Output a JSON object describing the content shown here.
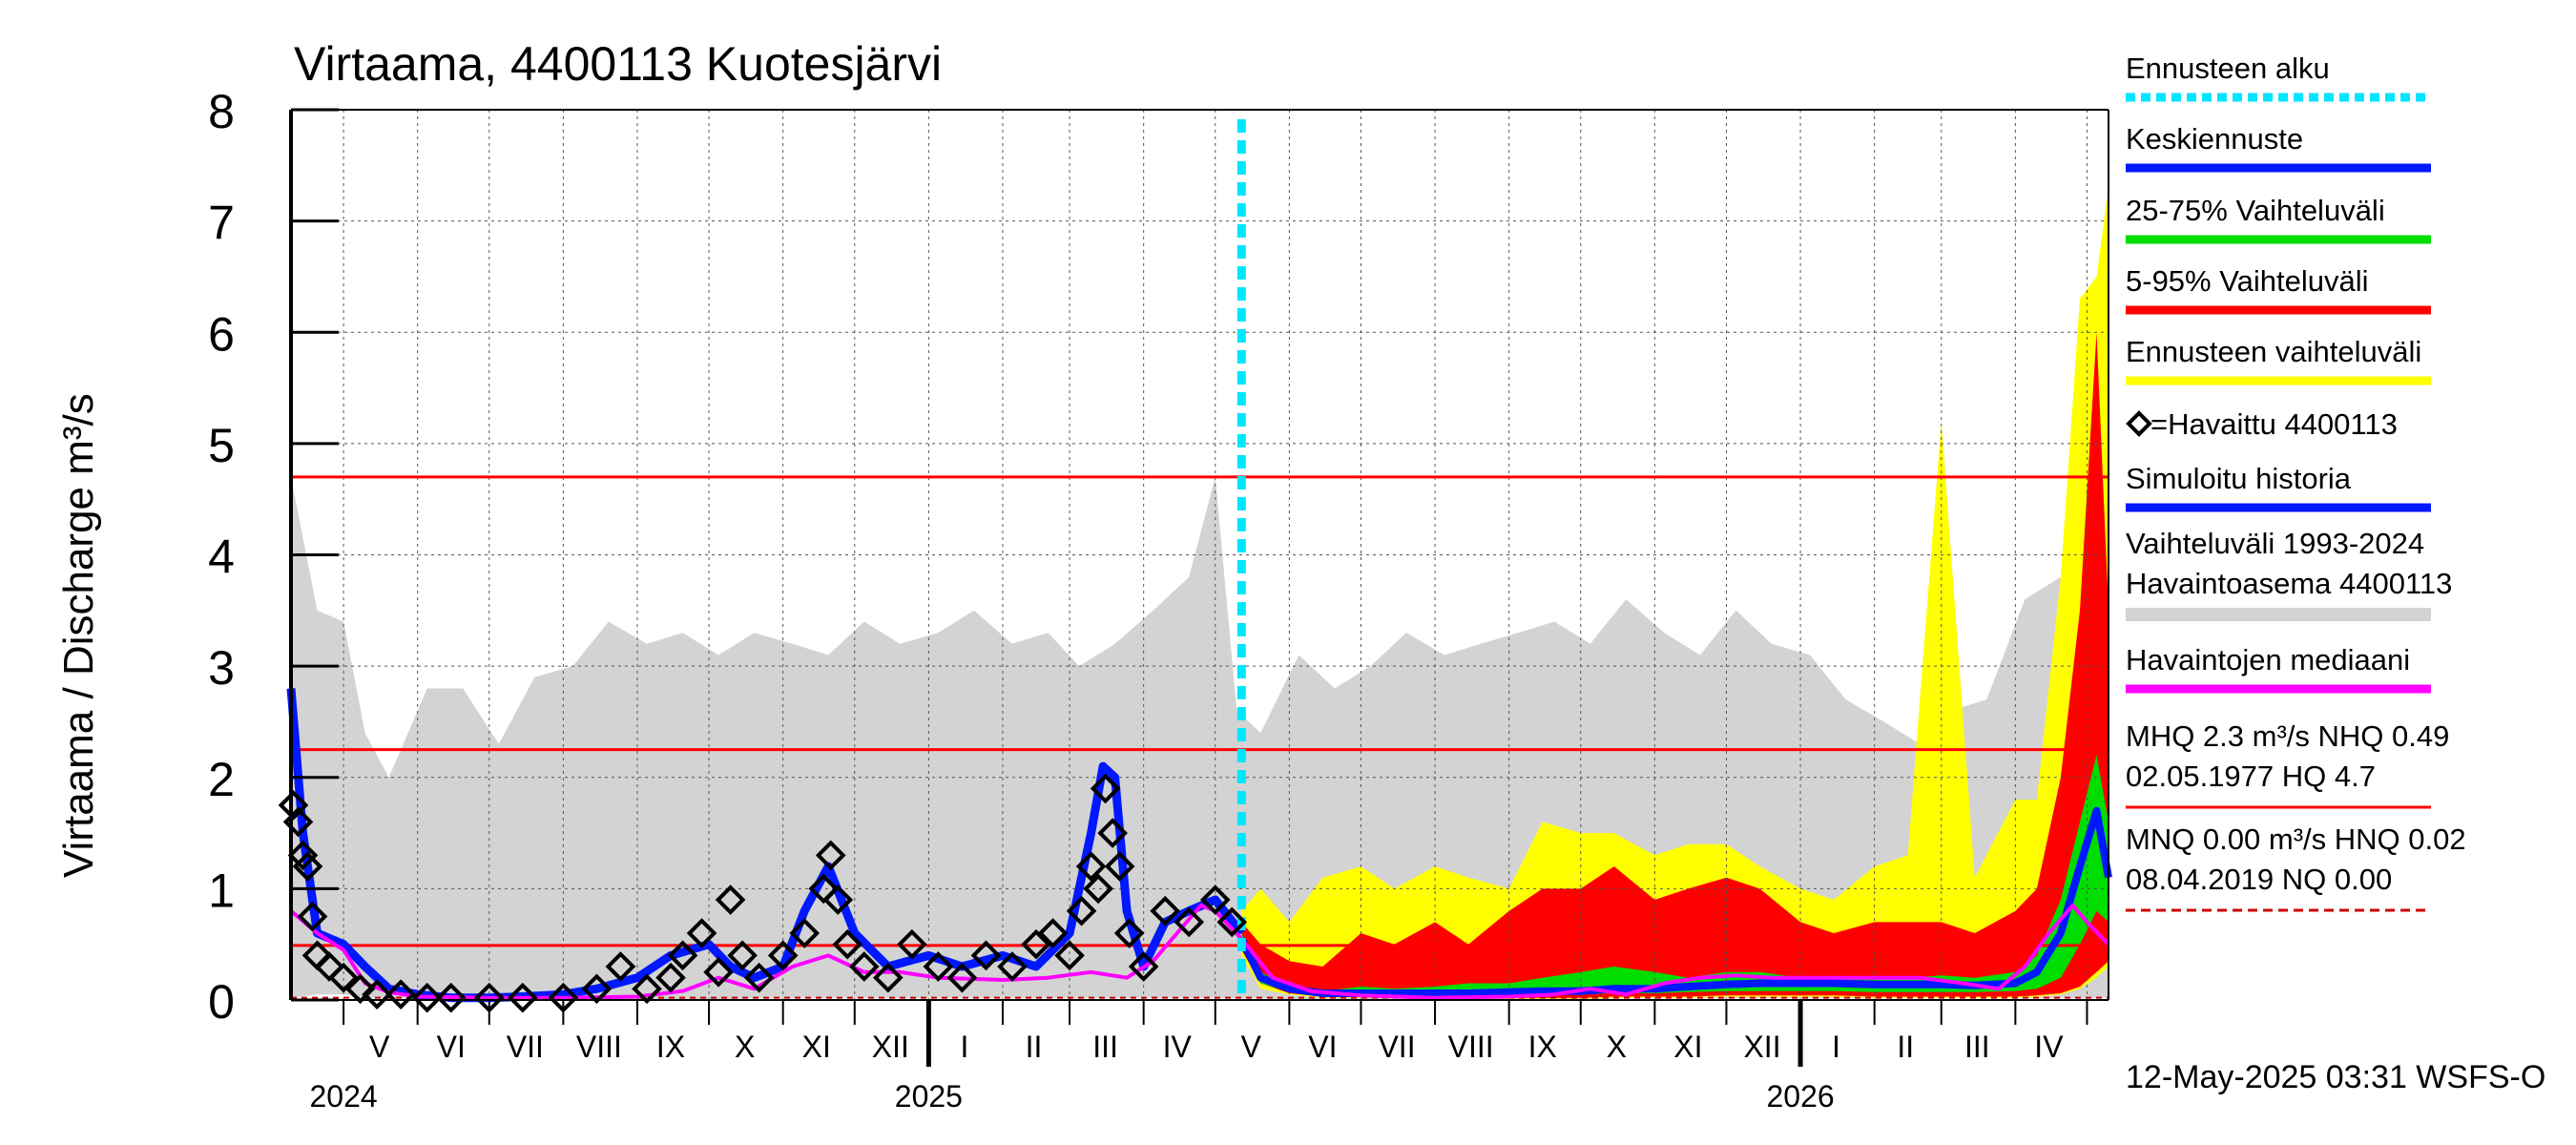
{
  "chart_data": {
    "type": "line",
    "title": "Virtaama, 4400113 Kuotesjärvi",
    "ylabel": "Virtaama / Discharge    m³/s",
    "ylim": [
      0,
      8
    ],
    "yticks": [
      "0",
      "1",
      "2",
      "3",
      "4",
      "5",
      "6",
      "7",
      "8"
    ],
    "xlim": [
      "2024-04-09",
      "2026-05-10"
    ],
    "month_labels": [
      {
        "label": "V",
        "date": "2024-05-16"
      },
      {
        "label": "VI",
        "date": "2024-06-15"
      },
      {
        "label": "VII",
        "date": "2024-07-16"
      },
      {
        "label": "VIII",
        "date": "2024-08-16"
      },
      {
        "label": "IX",
        "date": "2024-09-15"
      },
      {
        "label": "X",
        "date": "2024-10-16"
      },
      {
        "label": "XI",
        "date": "2024-11-15"
      },
      {
        "label": "XII",
        "date": "2024-12-16"
      },
      {
        "label": "I",
        "date": "2025-01-16"
      },
      {
        "label": "II",
        "date": "2025-02-14"
      },
      {
        "label": "III",
        "date": "2025-03-16"
      },
      {
        "label": "IV",
        "date": "2025-04-15"
      },
      {
        "label": "V",
        "date": "2025-05-16"
      },
      {
        "label": "VI",
        "date": "2025-06-15"
      },
      {
        "label": "VII",
        "date": "2025-07-16"
      },
      {
        "label": "VIII",
        "date": "2025-08-16"
      },
      {
        "label": "IX",
        "date": "2025-09-15"
      },
      {
        "label": "X",
        "date": "2025-10-16"
      },
      {
        "label": "XI",
        "date": "2025-11-15"
      },
      {
        "label": "XII",
        "date": "2025-12-16"
      },
      {
        "label": "I",
        "date": "2026-01-16"
      },
      {
        "label": "II",
        "date": "2026-02-14"
      },
      {
        "label": "III",
        "date": "2026-03-16"
      },
      {
        "label": "IV",
        "date": "2026-04-15"
      }
    ],
    "year_labels": [
      {
        "label": "2024",
        "date": "2024-05-01"
      },
      {
        "label": "2025",
        "date": "2025-01-01"
      },
      {
        "label": "2026",
        "date": "2026-01-01"
      }
    ],
    "forecast_start": "2025-05-12",
    "reference_lines": [
      {
        "name": "HQ",
        "value": 4.7
      },
      {
        "name": "MHQ",
        "value": 2.25
      },
      {
        "name": "NHQ",
        "value": 0.49
      },
      {
        "name": "HNQ",
        "value": 0.02
      }
    ],
    "series": [
      {
        "name": "Vaihteluväli 1993-2024 Havaintoasema 4400113",
        "kind": "band",
        "x": [
          "2024-04-09",
          "2024-04-20",
          "2024-05-01",
          "2024-05-10",
          "2024-05-20",
          "2024-06-05",
          "2024-06-20",
          "2024-07-05",
          "2024-07-20",
          "2024-08-05",
          "2024-08-20",
          "2024-09-05",
          "2024-09-20",
          "2024-10-05",
          "2024-10-20",
          "2024-11-05",
          "2024-11-20",
          "2024-12-05",
          "2024-12-20",
          "2025-01-05",
          "2025-01-20",
          "2025-02-05",
          "2025-02-20",
          "2025-03-05",
          "2025-03-20",
          "2025-04-05",
          "2025-04-20",
          "2025-05-01",
          "2025-05-10",
          "2025-05-20",
          "2025-06-05",
          "2025-06-20",
          "2025-07-05",
          "2025-07-20",
          "2025-08-05",
          "2025-08-20",
          "2025-09-05",
          "2025-09-20",
          "2025-10-05",
          "2025-10-20",
          "2025-11-05",
          "2025-11-20",
          "2025-12-05",
          "2025-12-20",
          "2026-01-05",
          "2026-01-20",
          "2026-02-05",
          "2026-02-20",
          "2026-03-05",
          "2026-03-20",
          "2026-04-05",
          "2026-04-20",
          "2026-04-26",
          "2026-05-01",
          "2026-05-10"
        ],
        "upper": [
          4.7,
          3.5,
          3.4,
          2.4,
          2.0,
          2.8,
          2.8,
          2.3,
          2.9,
          3.0,
          3.4,
          3.2,
          3.3,
          3.1,
          3.3,
          3.2,
          3.1,
          3.4,
          3.2,
          3.3,
          3.5,
          3.2,
          3.3,
          3.0,
          3.2,
          3.5,
          3.8,
          4.7,
          2.6,
          2.4,
          3.1,
          2.8,
          3.0,
          3.3,
          3.1,
          3.2,
          3.3,
          3.4,
          3.2,
          3.6,
          3.3,
          3.1,
          3.5,
          3.2,
          3.1,
          2.7,
          2.5,
          2.3,
          2.6,
          2.7,
          3.6,
          3.8,
          4.6,
          3.3,
          2.9
        ],
        "lower": [
          0.02,
          0.05,
          0.05,
          0.02,
          0.02,
          0.0,
          0.0,
          0.0,
          0.0,
          0.0,
          0.0,
          0.0,
          0.0,
          0.0,
          0.02,
          0.02,
          0.02,
          0.02,
          0.02,
          0.02,
          0.02,
          0.02,
          0.02,
          0.02,
          0.02,
          0.02,
          0.02,
          0.02,
          0.02,
          0.02,
          0.0,
          0.0,
          0.0,
          0.0,
          0.0,
          0.0,
          0.0,
          0.0,
          0.0,
          0.02,
          0.02,
          0.02,
          0.02,
          0.02,
          0.02,
          0.02,
          0.02,
          0.02,
          0.02,
          0.02,
          0.02,
          0.02,
          0.02,
          0.02,
          0.02
        ]
      },
      {
        "name": "Ennusteen vaihteluväli",
        "kind": "band",
        "x": [
          "2025-05-12",
          "2025-05-20",
          "2025-06-01",
          "2025-06-15",
          "2025-07-01",
          "2025-07-15",
          "2025-08-01",
          "2025-08-15",
          "2025-09-01",
          "2025-09-15",
          "2025-10-01",
          "2025-10-15",
          "2025-11-01",
          "2025-11-15",
          "2025-12-01",
          "2025-12-15",
          "2026-01-01",
          "2026-01-15",
          "2026-02-01",
          "2026-02-15",
          "2026-03-01",
          "2026-03-15",
          "2026-04-01",
          "2026-04-10",
          "2026-04-20",
          "2026-04-28",
          "2026-05-05",
          "2026-05-10"
        ],
        "upper": [
          0.8,
          1.0,
          0.7,
          1.1,
          1.2,
          1.0,
          1.2,
          1.1,
          1.0,
          1.6,
          1.5,
          1.5,
          1.3,
          1.4,
          1.4,
          1.2,
          1.0,
          0.9,
          1.2,
          1.3,
          5.2,
          1.1,
          1.8,
          1.8,
          3.8,
          6.3,
          6.5,
          7.3
        ],
        "lower": [
          0.4,
          0.1,
          0.05,
          0.02,
          0.02,
          0.02,
          0.01,
          0.01,
          0.01,
          0.01,
          0.01,
          0.02,
          0.02,
          0.02,
          0.03,
          0.03,
          0.03,
          0.03,
          0.02,
          0.02,
          0.02,
          0.02,
          0.02,
          0.03,
          0.05,
          0.1,
          0.2,
          0.3
        ]
      },
      {
        "name": "5-95% Vaihteluväli",
        "kind": "band",
        "x": [
          "2025-05-12",
          "2025-05-20",
          "2025-06-01",
          "2025-06-15",
          "2025-07-01",
          "2025-07-15",
          "2025-08-01",
          "2025-08-15",
          "2025-09-01",
          "2025-09-15",
          "2025-10-01",
          "2025-10-15",
          "2025-11-01",
          "2025-11-15",
          "2025-12-01",
          "2025-12-15",
          "2026-01-01",
          "2026-01-15",
          "2026-02-01",
          "2026-02-15",
          "2026-03-01",
          "2026-03-15",
          "2026-04-01",
          "2026-04-10",
          "2026-04-20",
          "2026-04-28",
          "2026-05-05",
          "2026-05-10"
        ],
        "upper": [
          0.7,
          0.5,
          0.35,
          0.3,
          0.6,
          0.5,
          0.7,
          0.5,
          0.8,
          1.0,
          1.0,
          1.2,
          0.9,
          1.0,
          1.1,
          1.0,
          0.7,
          0.6,
          0.7,
          0.7,
          0.7,
          0.6,
          0.8,
          1.0,
          2.0,
          3.5,
          6.0,
          3.5
        ],
        "lower": [
          0.45,
          0.15,
          0.06,
          0.03,
          0.03,
          0.02,
          0.02,
          0.02,
          0.02,
          0.02,
          0.02,
          0.03,
          0.03,
          0.03,
          0.04,
          0.04,
          0.04,
          0.04,
          0.03,
          0.03,
          0.03,
          0.03,
          0.03,
          0.04,
          0.06,
          0.12,
          0.25,
          0.35
        ]
      },
      {
        "name": "25-75% Vaihteluväli",
        "kind": "band",
        "x": [
          "2025-05-12",
          "2025-05-20",
          "2025-06-01",
          "2025-06-15",
          "2025-07-01",
          "2025-07-15",
          "2025-08-01",
          "2025-08-15",
          "2025-09-01",
          "2025-09-15",
          "2025-10-01",
          "2025-10-15",
          "2025-11-01",
          "2025-11-15",
          "2025-12-01",
          "2025-12-15",
          "2026-01-01",
          "2026-01-15",
          "2026-02-01",
          "2026-02-15",
          "2026-03-01",
          "2026-03-15",
          "2026-04-01",
          "2026-04-10",
          "2026-04-20",
          "2026-04-28",
          "2026-05-05",
          "2026-05-10"
        ],
        "upper": [
          0.6,
          0.25,
          0.12,
          0.08,
          0.12,
          0.1,
          0.12,
          0.15,
          0.15,
          0.2,
          0.25,
          0.3,
          0.25,
          0.2,
          0.25,
          0.25,
          0.2,
          0.2,
          0.2,
          0.2,
          0.22,
          0.2,
          0.25,
          0.4,
          0.9,
          1.6,
          2.2,
          1.6
        ],
        "lower": [
          0.5,
          0.15,
          0.07,
          0.04,
          0.04,
          0.04,
          0.04,
          0.04,
          0.04,
          0.04,
          0.05,
          0.06,
          0.06,
          0.07,
          0.08,
          0.08,
          0.08,
          0.08,
          0.07,
          0.07,
          0.07,
          0.07,
          0.08,
          0.1,
          0.2,
          0.5,
          0.8,
          0.7
        ]
      },
      {
        "name": "Keskiennuste",
        "kind": "line",
        "x": [
          "2025-05-12",
          "2025-05-20",
          "2025-06-01",
          "2025-06-15",
          "2025-07-01",
          "2025-07-15",
          "2025-08-01",
          "2025-08-15",
          "2025-09-01",
          "2025-09-15",
          "2025-10-01",
          "2025-10-15",
          "2025-11-01",
          "2025-11-15",
          "2025-12-01",
          "2025-12-15",
          "2026-01-01",
          "2026-01-15",
          "2026-02-01",
          "2026-02-15",
          "2026-03-01",
          "2026-03-15",
          "2026-04-01",
          "2026-04-10",
          "2026-04-20",
          "2026-04-28",
          "2026-05-05",
          "2026-05-10"
        ],
        "y": [
          0.55,
          0.2,
          0.1,
          0.06,
          0.06,
          0.06,
          0.06,
          0.06,
          0.07,
          0.08,
          0.08,
          0.1,
          0.1,
          0.12,
          0.14,
          0.15,
          0.15,
          0.15,
          0.14,
          0.14,
          0.14,
          0.13,
          0.15,
          0.25,
          0.6,
          1.2,
          1.7,
          1.1
        ]
      },
      {
        "name": "Simuloitu historia",
        "kind": "line",
        "x": [
          "2024-04-09",
          "2024-04-14",
          "2024-04-20",
          "2024-05-01",
          "2024-05-10",
          "2024-05-20",
          "2024-06-01",
          "2024-06-15",
          "2024-07-01",
          "2024-07-15",
          "2024-08-01",
          "2024-08-15",
          "2024-09-01",
          "2024-09-15",
          "2024-10-01",
          "2024-10-10",
          "2024-10-20",
          "2024-11-01",
          "2024-11-10",
          "2024-11-20",
          "2024-12-01",
          "2024-12-15",
          "2025-01-01",
          "2025-01-15",
          "2025-02-01",
          "2025-02-15",
          "2025-03-01",
          "2025-03-10",
          "2025-03-15",
          "2025-03-20",
          "2025-03-25",
          "2025-04-01",
          "2025-04-10",
          "2025-04-20",
          "2025-05-01",
          "2025-05-12"
        ],
        "y": [
          2.8,
          1.5,
          0.6,
          0.5,
          0.3,
          0.1,
          0.05,
          0.02,
          0.02,
          0.03,
          0.05,
          0.1,
          0.2,
          0.4,
          0.5,
          0.3,
          0.2,
          0.3,
          0.8,
          1.2,
          0.6,
          0.3,
          0.4,
          0.3,
          0.4,
          0.3,
          0.6,
          1.5,
          2.1,
          2.0,
          0.8,
          0.3,
          0.7,
          0.8,
          0.9,
          0.6
        ]
      },
      {
        "name": "Havaittu 4400113",
        "kind": "scatter",
        "x": [
          "2024-04-10",
          "2024-04-12",
          "2024-04-14",
          "2024-04-16",
          "2024-04-18",
          "2024-04-20",
          "2024-04-25",
          "2024-05-01",
          "2024-05-08",
          "2024-05-15",
          "2024-05-25",
          "2024-06-05",
          "2024-06-15",
          "2024-07-01",
          "2024-07-15",
          "2024-08-01",
          "2024-08-15",
          "2024-08-25",
          "2024-09-05",
          "2024-09-15",
          "2024-09-20",
          "2024-09-28",
          "2024-10-05",
          "2024-10-10",
          "2024-10-15",
          "2024-10-22",
          "2024-11-01",
          "2024-11-10",
          "2024-11-18",
          "2024-11-21",
          "2024-11-24",
          "2024-11-28",
          "2024-12-05",
          "2024-12-15",
          "2024-12-25",
          "2025-01-05",
          "2025-01-15",
          "2025-01-25",
          "2025-02-05",
          "2025-02-15",
          "2025-02-22",
          "2025-03-01",
          "2025-03-06",
          "2025-03-10",
          "2025-03-13",
          "2025-03-16",
          "2025-03-19",
          "2025-03-22",
          "2025-03-26",
          "2025-04-01",
          "2025-04-10",
          "2025-04-20",
          "2025-05-01",
          "2025-05-08"
        ],
        "y": [
          1.75,
          1.6,
          1.3,
          1.2,
          0.75,
          0.4,
          0.3,
          0.2,
          0.1,
          0.05,
          0.05,
          0.02,
          0.02,
          0.02,
          0.02,
          0.02,
          0.1,
          0.3,
          0.1,
          0.2,
          0.4,
          0.6,
          0.25,
          0.9,
          0.4,
          0.2,
          0.4,
          0.6,
          1.0,
          1.3,
          0.9,
          0.5,
          0.3,
          0.2,
          0.5,
          0.3,
          0.2,
          0.4,
          0.3,
          0.5,
          0.6,
          0.4,
          0.8,
          1.2,
          1.0,
          1.9,
          1.5,
          1.2,
          0.6,
          0.3,
          0.8,
          0.7,
          0.9,
          0.7
        ]
      },
      {
        "name": "Havaintojen mediaani",
        "kind": "line",
        "x": [
          "2024-04-09",
          "2024-04-20",
          "2024-05-01",
          "2024-05-10",
          "2024-05-20",
          "2024-06-01",
          "2024-07-01",
          "2024-08-01",
          "2024-09-01",
          "2024-09-20",
          "2024-10-05",
          "2024-10-20",
          "2024-11-05",
          "2024-11-20",
          "2024-12-05",
          "2024-12-20",
          "2025-01-05",
          "2025-02-01",
          "2025-02-20",
          "2025-03-10",
          "2025-03-25",
          "2025-04-05",
          "2025-04-15",
          "2025-04-25",
          "2025-05-01",
          "2025-05-12",
          "2025-05-25",
          "2025-06-10",
          "2025-07-01",
          "2025-08-01",
          "2025-09-01",
          "2025-09-20",
          "2025-10-05",
          "2025-10-20",
          "2025-11-05",
          "2025-11-20",
          "2025-12-05",
          "2025-12-20",
          "2026-01-05",
          "2026-02-01",
          "2026-02-20",
          "2026-03-10",
          "2026-03-25",
          "2026-04-05",
          "2026-04-15",
          "2026-04-25",
          "2026-05-01",
          "2026-05-10"
        ],
        "y": [
          0.8,
          0.6,
          0.45,
          0.15,
          0.07,
          0.03,
          0.02,
          0.02,
          0.03,
          0.08,
          0.2,
          0.1,
          0.3,
          0.4,
          0.25,
          0.25,
          0.2,
          0.18,
          0.2,
          0.25,
          0.2,
          0.35,
          0.6,
          0.85,
          0.8,
          0.55,
          0.2,
          0.08,
          0.04,
          0.02,
          0.03,
          0.05,
          0.1,
          0.05,
          0.15,
          0.2,
          0.22,
          0.2,
          0.2,
          0.2,
          0.2,
          0.15,
          0.1,
          0.3,
          0.6,
          0.85,
          0.7,
          0.5
        ]
      }
    ],
    "legend_position": "right",
    "grid": true
  },
  "legend": {
    "items": [
      {
        "label": "Ennusteen alku",
        "color": "#00e6ff",
        "style": "dashed"
      },
      {
        "label": "Keskiennuste",
        "color": "#0018ff",
        "style": "solid"
      },
      {
        "label": "25-75% Vaihteluväli",
        "color": "#00dd00",
        "style": "solid"
      },
      {
        "label": "5-95% Vaihteluväli",
        "color": "#ff0000",
        "style": "solid"
      },
      {
        "label": "Ennusteen vaihteluväli",
        "color": "#ffff00",
        "style": "solid"
      },
      {
        "label": "=Havaittu 4400113",
        "color": "#000000",
        "style": "marker"
      },
      {
        "label": "Simuloitu historia",
        "color": "#0018ff",
        "style": "solid"
      },
      {
        "label": "Vaihteluväli 1993-2024",
        "label2": " Havaintoasema 4400113",
        "color": "#d3d3d3",
        "style": "solid"
      },
      {
        "label": "Havaintojen mediaani",
        "color": "#ff00ff",
        "style": "solid"
      },
      {
        "label": "MHQ  2.3 m³/s NHQ 0.49",
        "label2": "02.05.1977 HQ  4.7",
        "color": "#ff0000",
        "style": "solid"
      },
      {
        "label": "MNQ 0.00 m³/s HNQ 0.02",
        "label2": "08.04.2019 NQ 0.00",
        "color": "#cc0000",
        "style": "dashed"
      }
    ]
  },
  "footer": {
    "timestamp": "12-May-2025 03:31 WSFS-O"
  },
  "colors": {
    "history_band": "#d3d3d3",
    "forecast_band": "#ffff00",
    "p5_95": "#ff0000",
    "p25_75": "#00dd00",
    "mean_forecast": "#0018ff",
    "simulated": "#0018ff",
    "observed": "#000000",
    "median": "#ff00ff",
    "forecast_start": "#00e6ff",
    "ref_line": "#ff0000"
  }
}
